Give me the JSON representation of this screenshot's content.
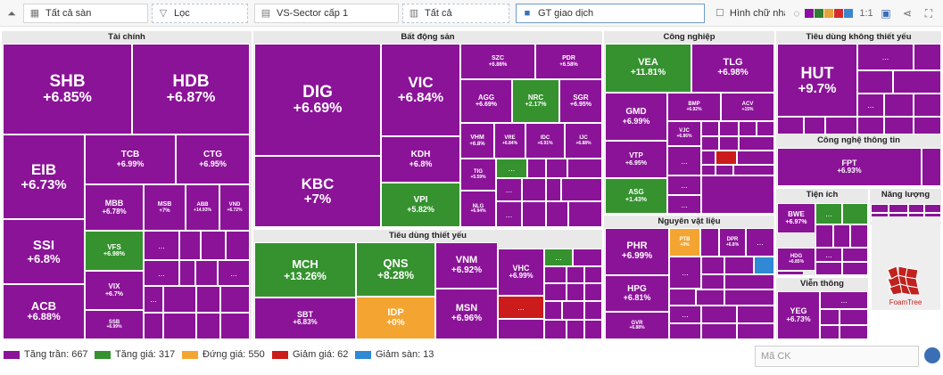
{
  "toolbar": {
    "collapse_glyph": "⏶",
    "scope": "Tất cả sàn",
    "filter": "Lọc",
    "sector": "VS-Sector cấp 1",
    "all": "Tất cả",
    "metric": "GT giao dịch",
    "shape_label": "Hình chữ nhật",
    "ratio": "1:1",
    "palette": [
      "#8e0fa2",
      "#2e7d32",
      "#e8a33a",
      "#d92a2a",
      "#3b87cc"
    ]
  },
  "colors": {
    "ceiling": "#8b1398",
    "up": "#35922f",
    "flat": "#f4a531",
    "down": "#cc1b1b",
    "floor": "#2f89d4"
  },
  "more_label": "...",
  "groups": {
    "tai_chinh": "Tài chính",
    "bat_dong_san": "Bất động sản",
    "cong_nghiep": "Công nghiệp",
    "tieu_dung_kt": "Tiêu dùng không thiết yếu",
    "tieu_dung_ty": "Tiêu dùng thiết yếu",
    "nguyen_vat_lieu": "Nguyên vật liệu",
    "cntt": "Công nghệ thông tin",
    "tien_ich": "Tiện ích",
    "nang_luong": "Năng lượng",
    "vien_thong": "Viễn thông"
  },
  "tickers": {
    "SHB": {
      "name": "SHB",
      "change": "+6.85%"
    },
    "HDB": {
      "name": "HDB",
      "change": "+6.87%"
    },
    "EIB": {
      "name": "EIB",
      "change": "+6.73%"
    },
    "TCB": {
      "name": "TCB",
      "change": "+6.99%"
    },
    "CTG": {
      "name": "CTG",
      "change": "+6.95%"
    },
    "SSI": {
      "name": "SSI",
      "change": "+6.8%"
    },
    "MBB": {
      "name": "MBB",
      "change": "+6.78%"
    },
    "MSB": {
      "name": "MSB",
      "change": "+7%"
    },
    "ABB": {
      "name": "ABB",
      "change": "+14.93%"
    },
    "VND": {
      "name": "VND",
      "change": "+6.72%"
    },
    "VFS": {
      "name": "VFS",
      "change": "+6.98%"
    },
    "ACB": {
      "name": "ACB",
      "change": "+6.88%"
    },
    "VIX": {
      "name": "VIX",
      "change": "+6.7%"
    },
    "SSB": {
      "name": "SSB",
      "change": "+6.99%"
    },
    "DIG": {
      "name": "DIG",
      "change": "+6.69%"
    },
    "VIC": {
      "name": "VIC",
      "change": "+6.84%"
    },
    "SZC": {
      "name": "SZC",
      "change": "+6.86%"
    },
    "PDR": {
      "name": "PDR",
      "change": "+6.58%"
    },
    "AGG": {
      "name": "AGG",
      "change": "+6.69%"
    },
    "NRC": {
      "name": "NRC",
      "change": "+2.17%"
    },
    "SGR": {
      "name": "SGR",
      "change": "+6.95%"
    },
    "KBC": {
      "name": "KBC",
      "change": "+7%"
    },
    "KDH": {
      "name": "KDH",
      "change": "+6.8%"
    },
    "VHM": {
      "name": "VHM",
      "change": "+6.8%"
    },
    "VRE": {
      "name": "VRE",
      "change": "+6.84%"
    },
    "IDC": {
      "name": "IDC",
      "change": "+6.91%"
    },
    "IJC": {
      "name": "IJC",
      "change": "+6.88%"
    },
    "TIG": {
      "name": "TIG",
      "change": "+5.59%"
    },
    "VPI": {
      "name": "VPI",
      "change": "+5.82%"
    },
    "NLG": {
      "name": "NLG",
      "change": "+6.94%"
    },
    "VEA": {
      "name": "VEA",
      "change": "+11.81%"
    },
    "TLG": {
      "name": "TLG",
      "change": "+6.98%"
    },
    "GMD": {
      "name": "GMD",
      "change": "+6.99%"
    },
    "BMP": {
      "name": "BMP",
      "change": "+6.92%"
    },
    "ACV": {
      "name": "ACV",
      "change": "+15%"
    },
    "VJC": {
      "name": "VJC",
      "change": "+6.86%"
    },
    "VTP": {
      "name": "VTP",
      "change": "+6.95%"
    },
    "ASG": {
      "name": "ASG",
      "change": "+1.43%"
    },
    "HUT": {
      "name": "HUT",
      "change": "+9.7%"
    },
    "FPT": {
      "name": "FPT",
      "change": "+6.93%"
    },
    "MCH": {
      "name": "MCH",
      "change": "+13.26%"
    },
    "QNS": {
      "name": "QNS",
      "change": "+8.28%"
    },
    "VNM": {
      "name": "VNM",
      "change": "+6.92%"
    },
    "VHC": {
      "name": "VHC",
      "change": "+6.99%"
    },
    "SBT": {
      "name": "SBT",
      "change": "+6.83%"
    },
    "IDP": {
      "name": "IDP",
      "change": "+0%"
    },
    "MSN": {
      "name": "MSN",
      "change": "+6.96%"
    },
    "PHR": {
      "name": "PHR",
      "change": "+6.99%"
    },
    "PTB": {
      "name": "PTB",
      "change": "+0%"
    },
    "DPR": {
      "name": "DPR",
      "change": "+6.8%"
    },
    "HPG": {
      "name": "HPG",
      "change": "+6.81%"
    },
    "GVR": {
      "name": "GVR",
      "change": "+6.88%"
    },
    "BWE": {
      "name": "BWE",
      "change": "+6.97%"
    },
    "HDG": {
      "name": "HDG",
      "change": "+6.85%"
    },
    "YEG": {
      "name": "YEG",
      "change": "+6.73%"
    }
  },
  "legend": {
    "ceiling": "Tăng trần: 667",
    "up": "Tăng giá: 317",
    "flat": "Đứng giá: 550",
    "down": "Giảm giá: 62",
    "floor": "Giảm sàn: 13"
  },
  "search_placeholder": "Mã CK",
  "logo_text": "FoamTree"
}
